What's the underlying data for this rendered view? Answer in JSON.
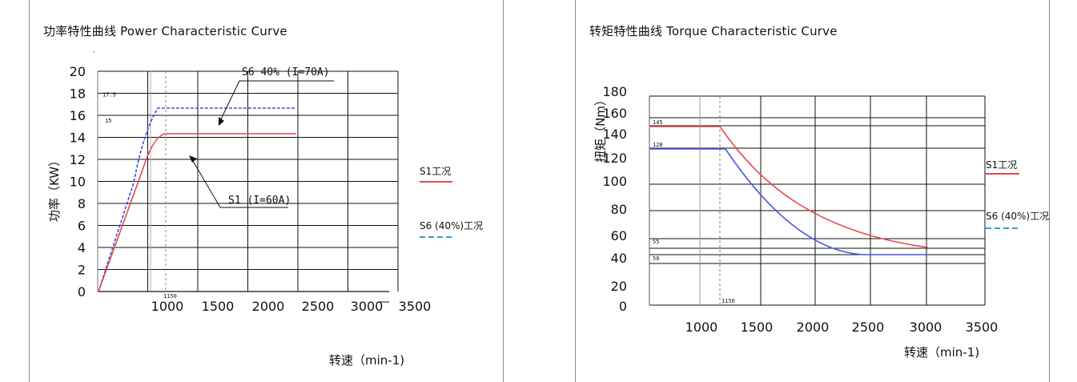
{
  "chart_data": [
    {
      "type": "line",
      "title": "功率特性曲线  Power Characteristic Curve",
      "xlabel": "转速（min-1)",
      "ylabel": "功率（KW）",
      "xlim": [
        500,
        3500
      ],
      "ylim": [
        0,
        20
      ],
      "x_ticks": [
        1000,
        1500,
        2000,
        2500,
        3000,
        3500
      ],
      "y_ticks": [
        0,
        2,
        4,
        6,
        8,
        10,
        12,
        14,
        16,
        18,
        20
      ],
      "grid": true,
      "series": [
        {
          "name": "S1工况",
          "color": "#e8474c",
          "style": "solid",
          "points": [
            [
              500,
              0
            ],
            [
              700,
              7.5
            ],
            [
              850,
              13.5
            ],
            [
              950,
              14.8
            ],
            [
              1000,
              15
            ],
            [
              1150,
              15
            ],
            [
              2500,
              15
            ]
          ]
        },
        {
          "name": "S6 (40%)工况",
          "color": "#3a4ee0",
          "style": "dashed",
          "points": [
            [
              500,
              0
            ],
            [
              650,
              7.5
            ],
            [
              820,
              15
            ],
            [
              880,
              16.6
            ],
            [
              950,
              17.2
            ],
            [
              1000,
              17.5
            ],
            [
              1150,
              17.5
            ],
            [
              2500,
              17.5
            ]
          ]
        }
      ],
      "marked_values": [
        "17.5",
        "15"
      ],
      "marked_x_value": "1150",
      "annotations": [
        {
          "text": "S6 40% (I=70A)",
          "series": "S6 (40%)工况"
        },
        {
          "text": "S1 (I=60A)",
          "series": "S1工况"
        }
      ],
      "legend_position": "right"
    },
    {
      "type": "line",
      "title": "转矩特性曲线 Torque Characteristic Curve",
      "xlabel": "转速（min-1)",
      "ylabel": "扭矩（Nm）",
      "xlim": [
        500,
        3500
      ],
      "ylim": [
        0,
        180
      ],
      "x_ticks": [
        1000,
        1500,
        2000,
        2500,
        3000,
        3500
      ],
      "y_ticks": [
        0,
        20,
        40,
        60,
        80,
        100,
        120,
        140,
        160,
        180
      ],
      "grid": true,
      "series": [
        {
          "name": "S1工况",
          "color": "#e8474c",
          "style": "solid",
          "points": [
            [
              500,
              146
            ],
            [
              1150,
              146
            ],
            [
              1300,
              132
            ],
            [
              1500,
              114
            ],
            [
              1750,
              97
            ],
            [
              2000,
              84
            ],
            [
              2250,
              74
            ],
            [
              2500,
              67
            ],
            [
              2750,
              62
            ],
            [
              3000,
              58
            ]
          ]
        },
        {
          "name": "S6 (40%)工况",
          "color": "#4d55e6",
          "style": "solid",
          "points": [
            [
              500,
              126
            ],
            [
              1200,
              126
            ],
            [
              1400,
              103
            ],
            [
              1600,
              85
            ],
            [
              1800,
              72
            ],
            [
              2000,
              64
            ],
            [
              2250,
              56
            ],
            [
              2500,
              52
            ],
            [
              2750,
              50
            ],
            [
              3000,
              50
            ]
          ]
        }
      ],
      "marked_values": [
        "145",
        "128",
        "55",
        "50"
      ],
      "marked_x_value": "1150",
      "legend_position": "right"
    }
  ],
  "legend_colors": {
    "s1": "#e8474c",
    "s6": "#2f9be0"
  }
}
